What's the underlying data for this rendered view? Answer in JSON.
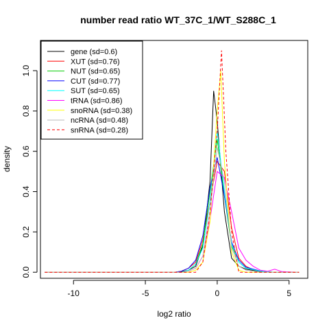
{
  "chart_data": {
    "type": "line",
    "title": "number read ratio WT_37C_1/WT_S288C_1",
    "xlabel": "log2 ratio",
    "ylabel": "density",
    "xlim": [
      -12.3,
      6.3
    ],
    "ylim": [
      -0.03,
      1.15
    ],
    "xticks": [
      -10,
      -5,
      0,
      5
    ],
    "yticks": [
      0.0,
      0.2,
      0.4,
      0.6,
      0.8,
      1.0
    ],
    "xtick_labels": [
      "-10",
      "-5",
      "0",
      "5"
    ],
    "ytick_labels": [
      "0.0",
      "0.2",
      "0.4",
      "0.6",
      "0.8",
      "1.0"
    ],
    "grid": false,
    "legend_position": "top-left",
    "series": [
      {
        "name": "gene (sd=0.6)",
        "color": "#000000",
        "dash": "solid",
        "points": [
          [
            -12,
            0
          ],
          [
            -3,
            0
          ],
          [
            -2.5,
            0.003
          ],
          [
            -2,
            0.01
          ],
          [
            -1.5,
            0.03
          ],
          [
            -1,
            0.13
          ],
          [
            -0.5,
            0.45
          ],
          [
            -0.25,
            0.9
          ],
          [
            0,
            0.75
          ],
          [
            0.5,
            0.3
          ],
          [
            1,
            0.07
          ],
          [
            1.5,
            0.03
          ],
          [
            2,
            0.015
          ],
          [
            3,
            0.003
          ],
          [
            4,
            0
          ],
          [
            5.7,
            0
          ]
        ]
      },
      {
        "name": "XUT (sd=0.76)",
        "color": "#ff0000",
        "dash": "solid",
        "points": [
          [
            -12,
            0
          ],
          [
            -3,
            0
          ],
          [
            -2.5,
            0.005
          ],
          [
            -2,
            0.02
          ],
          [
            -1.5,
            0.05
          ],
          [
            -1,
            0.16
          ],
          [
            -0.5,
            0.35
          ],
          [
            0,
            0.55
          ],
          [
            0.5,
            0.5
          ],
          [
            1,
            0.22
          ],
          [
            1.5,
            0.07
          ],
          [
            2,
            0.03
          ],
          [
            2.5,
            0.012
          ],
          [
            3,
            0.004
          ],
          [
            4,
            0
          ],
          [
            5.7,
            0
          ]
        ]
      },
      {
        "name": "NUT (sd=0.65)",
        "color": "#00cc00",
        "dash": "solid",
        "points": [
          [
            -12,
            0
          ],
          [
            -2.5,
            0
          ],
          [
            -2,
            0.01
          ],
          [
            -1.5,
            0.04
          ],
          [
            -1,
            0.14
          ],
          [
            -0.5,
            0.4
          ],
          [
            0,
            0.66
          ],
          [
            0.5,
            0.38
          ],
          [
            1,
            0.13
          ],
          [
            1.5,
            0.05
          ],
          [
            2,
            0.02
          ],
          [
            3,
            0.005
          ],
          [
            4,
            0
          ],
          [
            5.7,
            0
          ]
        ]
      },
      {
        "name": "CUT (sd=0.77)",
        "color": "#0000ff",
        "dash": "solid",
        "points": [
          [
            -12,
            0
          ],
          [
            -3,
            0
          ],
          [
            -2.5,
            0.005
          ],
          [
            -2,
            0.02
          ],
          [
            -1.5,
            0.06
          ],
          [
            -1,
            0.18
          ],
          [
            -0.5,
            0.42
          ],
          [
            0,
            0.57
          ],
          [
            0.5,
            0.38
          ],
          [
            1,
            0.15
          ],
          [
            1.5,
            0.06
          ],
          [
            2,
            0.025
          ],
          [
            3,
            0.006
          ],
          [
            4,
            0
          ],
          [
            5.7,
            0
          ]
        ]
      },
      {
        "name": "SUT (sd=0.65)",
        "color": "#00ffff",
        "dash": "solid",
        "points": [
          [
            -12,
            0
          ],
          [
            -2.5,
            0
          ],
          [
            -2,
            0.01
          ],
          [
            -1.5,
            0.04
          ],
          [
            -1,
            0.12
          ],
          [
            -0.5,
            0.35
          ],
          [
            0,
            0.7
          ],
          [
            0.5,
            0.4
          ],
          [
            1,
            0.14
          ],
          [
            1.5,
            0.05
          ],
          [
            2,
            0.02
          ],
          [
            3,
            0.005
          ],
          [
            4,
            0
          ],
          [
            5.7,
            0
          ]
        ]
      },
      {
        "name": "tRNA (sd=0.86)",
        "color": "#ff00ff",
        "dash": "solid",
        "points": [
          [
            -12,
            0
          ],
          [
            -2.5,
            0
          ],
          [
            -2,
            0.005
          ],
          [
            -1.5,
            0.02
          ],
          [
            -1,
            0.08
          ],
          [
            -0.5,
            0.26
          ],
          [
            0,
            0.5
          ],
          [
            0.5,
            0.47
          ],
          [
            1,
            0.3
          ],
          [
            1.5,
            0.12
          ],
          [
            2,
            0.06
          ],
          [
            2.5,
            0.03
          ],
          [
            3,
            0.01
          ],
          [
            3.5,
            0.005
          ],
          [
            4,
            0.015
          ],
          [
            4.5,
            0.003
          ],
          [
            5.7,
            0
          ]
        ]
      },
      {
        "name": "snoRNA (sd=0.38)",
        "color": "#ffff00",
        "dash": "solid",
        "points": [
          [
            -12,
            0
          ],
          [
            -2,
            0
          ],
          [
            -1.5,
            0.01
          ],
          [
            -1,
            0.05
          ],
          [
            -0.5,
            0.25
          ],
          [
            0,
            0.8
          ],
          [
            0.25,
            1.0
          ],
          [
            0.5,
            0.55
          ],
          [
            1,
            0.1
          ],
          [
            1.5,
            0.01
          ],
          [
            2,
            0
          ],
          [
            5.7,
            0
          ]
        ]
      },
      {
        "name": "ncRNA (sd=0.48)",
        "color": "#bbbbbb",
        "dash": "solid",
        "points": [
          [
            -12,
            0
          ],
          [
            -2.5,
            0
          ],
          [
            -2,
            0.005
          ],
          [
            -1.5,
            0.02
          ],
          [
            -1,
            0.08
          ],
          [
            -0.5,
            0.3
          ],
          [
            0,
            0.62
          ],
          [
            0.5,
            0.45
          ],
          [
            1,
            0.12
          ],
          [
            1.5,
            0.03
          ],
          [
            2,
            0.01
          ],
          [
            3,
            0
          ],
          [
            5.7,
            0
          ]
        ]
      },
      {
        "name": "snRNA (sd=0.28)",
        "color": "#ff0000",
        "dash": "dashed",
        "points": [
          [
            -12,
            0
          ],
          [
            -1.5,
            0
          ],
          [
            -1,
            0.05
          ],
          [
            -0.5,
            0.3
          ],
          [
            0,
            0.7
          ],
          [
            0.3,
            1.1
          ],
          [
            0.6,
            0.6
          ],
          [
            1,
            0.2
          ],
          [
            1.5,
            0
          ],
          [
            5.7,
            0
          ]
        ]
      }
    ]
  }
}
